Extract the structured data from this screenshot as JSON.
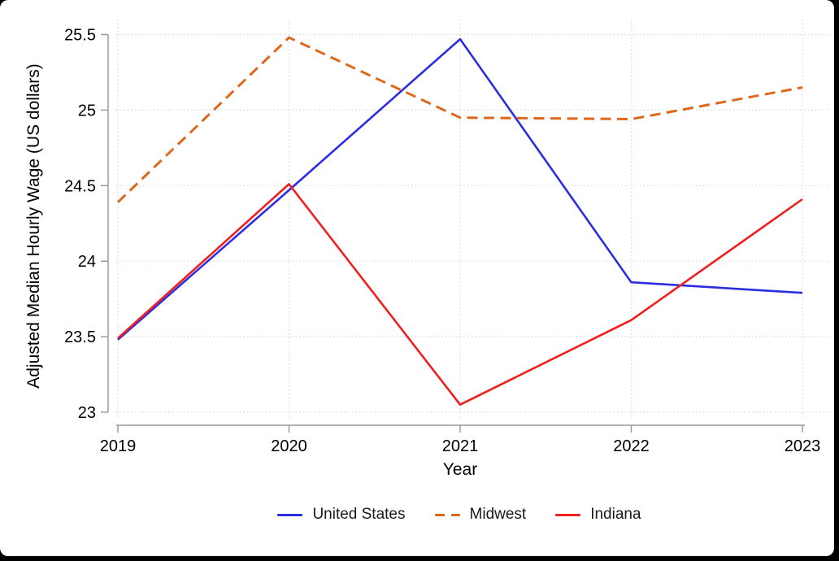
{
  "chart_data": {
    "type": "line",
    "title": "",
    "xlabel": "Year",
    "ylabel": "Adjusted Median Hourly Wage (US dollars)",
    "x": [
      2019,
      2020,
      2021,
      2022,
      2023
    ],
    "x_tick_labels": [
      "2019",
      "2020",
      "2021",
      "2022",
      "2023"
    ],
    "y_ticks": [
      23,
      23.5,
      24,
      24.5,
      25,
      25.5
    ],
    "y_tick_labels": [
      "23",
      "23.5",
      "24",
      "24.5",
      "25",
      "25.5"
    ],
    "xlim": [
      2019,
      2023
    ],
    "ylim": [
      23,
      25.5
    ],
    "grid": {
      "horizontal": true,
      "vertical": true,
      "style": "dotted",
      "color": "#cfcfcf"
    },
    "axis_color": "#9b9b9b",
    "text_color": "#000000",
    "legend_position": "bottom-center",
    "series": [
      {
        "name": "United States",
        "color": "#2d2de1",
        "line_style": "solid",
        "values": [
          23.48,
          24.47,
          25.47,
          23.86,
          23.79
        ]
      },
      {
        "name": "Midwest",
        "color": "#df671c",
        "line_style": "dashed",
        "values": [
          24.39,
          25.48,
          24.95,
          24.94,
          25.15
        ]
      },
      {
        "name": "Indiana",
        "color": "#ef2020",
        "line_style": "solid",
        "values": [
          23.49,
          24.51,
          23.05,
          23.61,
          24.41
        ]
      }
    ]
  }
}
